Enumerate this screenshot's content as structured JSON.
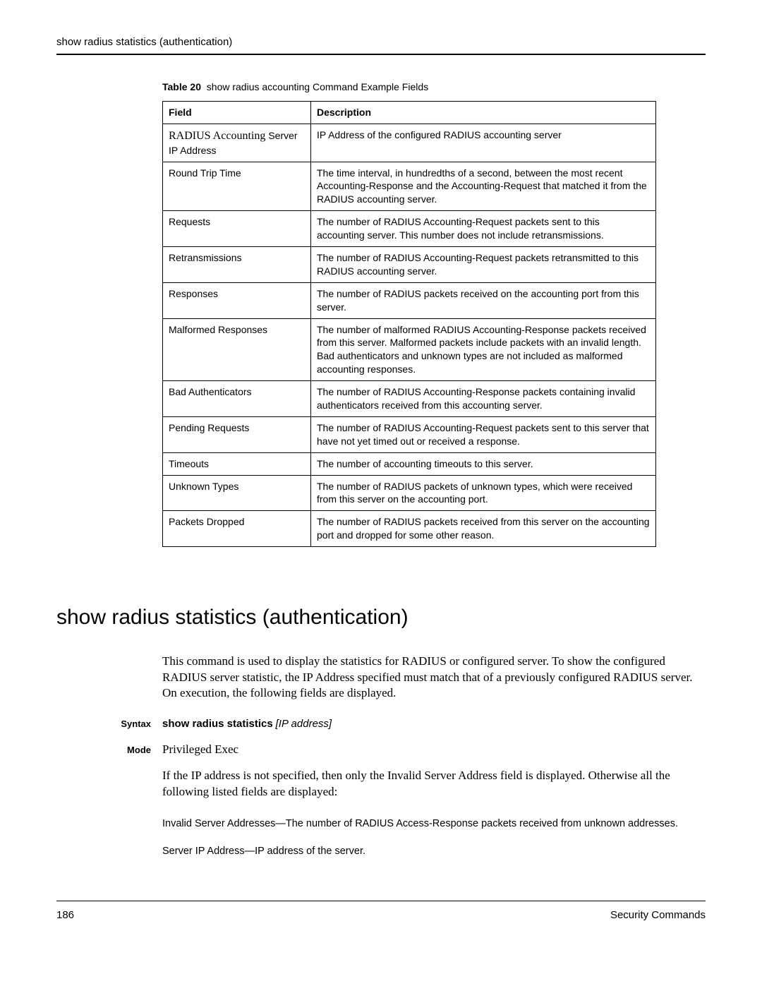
{
  "header": {
    "running_title": "show radius statistics (authentication)"
  },
  "table": {
    "caption_label": "Table 20",
    "caption_text": "show radius accounting Command Example Fields",
    "col_field": "Field",
    "col_desc": "Description",
    "rows": [
      {
        "field_serif": "RADIUS Accounting Server",
        "field_sub": "IP Address",
        "desc": "IP Address of the configured RADIUS accounting server"
      },
      {
        "field": "Round Trip Time",
        "desc": "The time interval, in hundredths of a second, between the most recent Accounting-Response and the Accounting-Request that matched it from the RADIUS accounting server."
      },
      {
        "field": "Requests",
        "desc": "The number of RADIUS Accounting-Request packets sent to this accounting server. This number does not include retransmissions."
      },
      {
        "field": "Retransmissions",
        "desc": "The number of RADIUS Accounting-Request packets retransmitted to this RADIUS accounting server."
      },
      {
        "field": "Responses",
        "desc": "The number of RADIUS packets received on the accounting port from this server."
      },
      {
        "field": "Malformed Responses",
        "desc": "The number of malformed RADIUS Accounting-Response packets received from this server. Malformed packets include packets with an invalid length. Bad authenticators and unknown types are not included as malformed accounting responses."
      },
      {
        "field": "Bad Authenticators",
        "desc": "The number of RADIUS Accounting-Response packets containing invalid authenticators received from this accounting server."
      },
      {
        "field": "Pending Requests",
        "desc": "The number of RADIUS Accounting-Request packets sent to this server that have not yet timed out or received a response."
      },
      {
        "field": "Timeouts",
        "desc": "The number of accounting timeouts to this server."
      },
      {
        "field": "Unknown Types",
        "desc": "The number of RADIUS packets of unknown types, which were received from this server on the accounting port."
      },
      {
        "field": "Packets Dropped",
        "desc": "The number of RADIUS packets received from this server on the accounting port and dropped for some other reason."
      }
    ]
  },
  "section": {
    "title": "show radius statistics (authentication)",
    "intro": "This command is used to display the statistics for RADIUS or configured server. To show the configured RADIUS server statistic, the IP Address specified must match that of a previously configured RADIUS server. On execution, the following fields are displayed.",
    "syntax_label": "Syntax",
    "syntax_cmd": "show radius statistics",
    "syntax_arg": "[IP address]",
    "mode_label": "Mode",
    "mode_value": "Privileged Exec",
    "note": "If the IP address is not specified, then only the Invalid Server Address field is displayed. Otherwise all the following listed fields are displayed:",
    "para1": "Invalid Server Addresses—The number of RADIUS Access-Response packets received from unknown addresses.",
    "para2": "Server IP Address—IP address of the server."
  },
  "footer": {
    "page": "186",
    "chapter": "Security Commands"
  }
}
